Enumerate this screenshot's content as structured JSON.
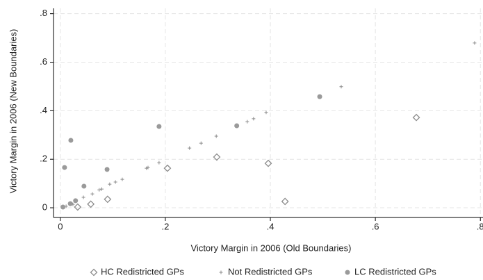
{
  "chart_data": {
    "type": "scatter",
    "xlabel": "Victory Margin in 2006 (Old Boundaries)",
    "ylabel": "Victory Margin in 2006 (New Boundaries)",
    "xlim": [
      -0.013,
      0.805
    ],
    "ylim": [
      -0.04,
      0.822
    ],
    "xticks": [
      0,
      {
        "value": 0.2,
        "label": ".2"
      },
      {
        "value": 0.4,
        "label": ".4"
      },
      {
        "value": 0.6,
        "label": ".6"
      },
      {
        "value": 0.8,
        "label": ".8"
      }
    ],
    "yticks": [
      0,
      {
        "value": 0.2,
        "label": ".2"
      },
      {
        "value": 0.4,
        "label": ".4"
      },
      {
        "value": 0.6,
        "label": ".6"
      },
      {
        "value": 0.8,
        "label": ".8"
      }
    ],
    "grid": true,
    "series": [
      {
        "name": "HC Redistricted GPs",
        "marker": "diamond",
        "color": "#8c8c8c",
        "x": [
          0.033,
          0.058,
          0.09,
          0.204,
          0.298,
          0.396,
          0.428,
          0.678
        ],
        "values": [
          0.003,
          0.015,
          0.035,
          0.163,
          0.209,
          0.183,
          0.026,
          0.372
        ]
      },
      {
        "name": "Not Redistricted GPs",
        "marker": "plus",
        "color": "#8c8c8c",
        "x": [
          0.011,
          0.024,
          0.044,
          0.061,
          0.074,
          0.079,
          0.094,
          0.105,
          0.118,
          0.164,
          0.167,
          0.188,
          0.246,
          0.268,
          0.297,
          0.356,
          0.368,
          0.392,
          0.535,
          0.789
        ],
        "values": [
          0.006,
          0.014,
          0.043,
          0.057,
          0.074,
          0.077,
          0.097,
          0.106,
          0.117,
          0.163,
          0.166,
          0.186,
          0.246,
          0.266,
          0.295,
          0.355,
          0.367,
          0.393,
          0.499,
          0.679
        ]
      },
      {
        "name": "LC Redistricted GPs",
        "marker": "circle",
        "color": "#9a9a9a",
        "x": [
          0.005,
          0.008,
          0.019,
          0.02,
          0.029,
          0.045,
          0.089,
          0.188,
          0.336,
          0.494
        ],
        "values": [
          0.003,
          0.166,
          0.017,
          0.278,
          0.029,
          0.089,
          0.158,
          0.335,
          0.338,
          0.458
        ]
      }
    ]
  }
}
